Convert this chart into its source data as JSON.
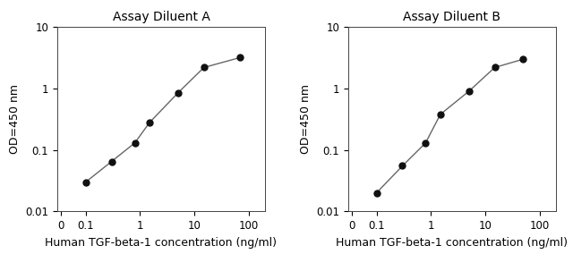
{
  "title_A": "Assay Diluent A",
  "title_B": "Assay Diluent B",
  "xlabel": "Human TGF-beta-1 concentration (ng/ml)",
  "ylabel": "OD=450 nm",
  "x_A": [
    0.1,
    0.3,
    0.8,
    1.5,
    5,
    15,
    70
  ],
  "y_A": [
    0.03,
    0.065,
    0.13,
    0.28,
    0.85,
    2.2,
    3.2
  ],
  "x_B": [
    0.1,
    0.3,
    0.8,
    1.5,
    5,
    15,
    50
  ],
  "y_B": [
    0.02,
    0.055,
    0.13,
    0.38,
    0.9,
    2.2,
    3.0
  ],
  "xlim": [
    0.03,
    200
  ],
  "ylim": [
    0.01,
    10
  ],
  "xtick_vals": [
    0.1,
    1,
    10,
    100
  ],
  "xtick_labels": [
    "0.1",
    "1",
    "10",
    "100"
  ],
  "ytick_vals": [
    0.01,
    0.1,
    1,
    10
  ],
  "ytick_labels": [
    "0.01",
    "0.1",
    "1",
    "10"
  ],
  "extra_xtick_val": 0.035,
  "extra_xtick_label": "0",
  "line_color": "#666666",
  "marker_color": "#111111",
  "marker_size": 5,
  "bg_color": "#ffffff",
  "title_fontsize": 10,
  "label_fontsize": 9,
  "tick_fontsize": 8.5
}
